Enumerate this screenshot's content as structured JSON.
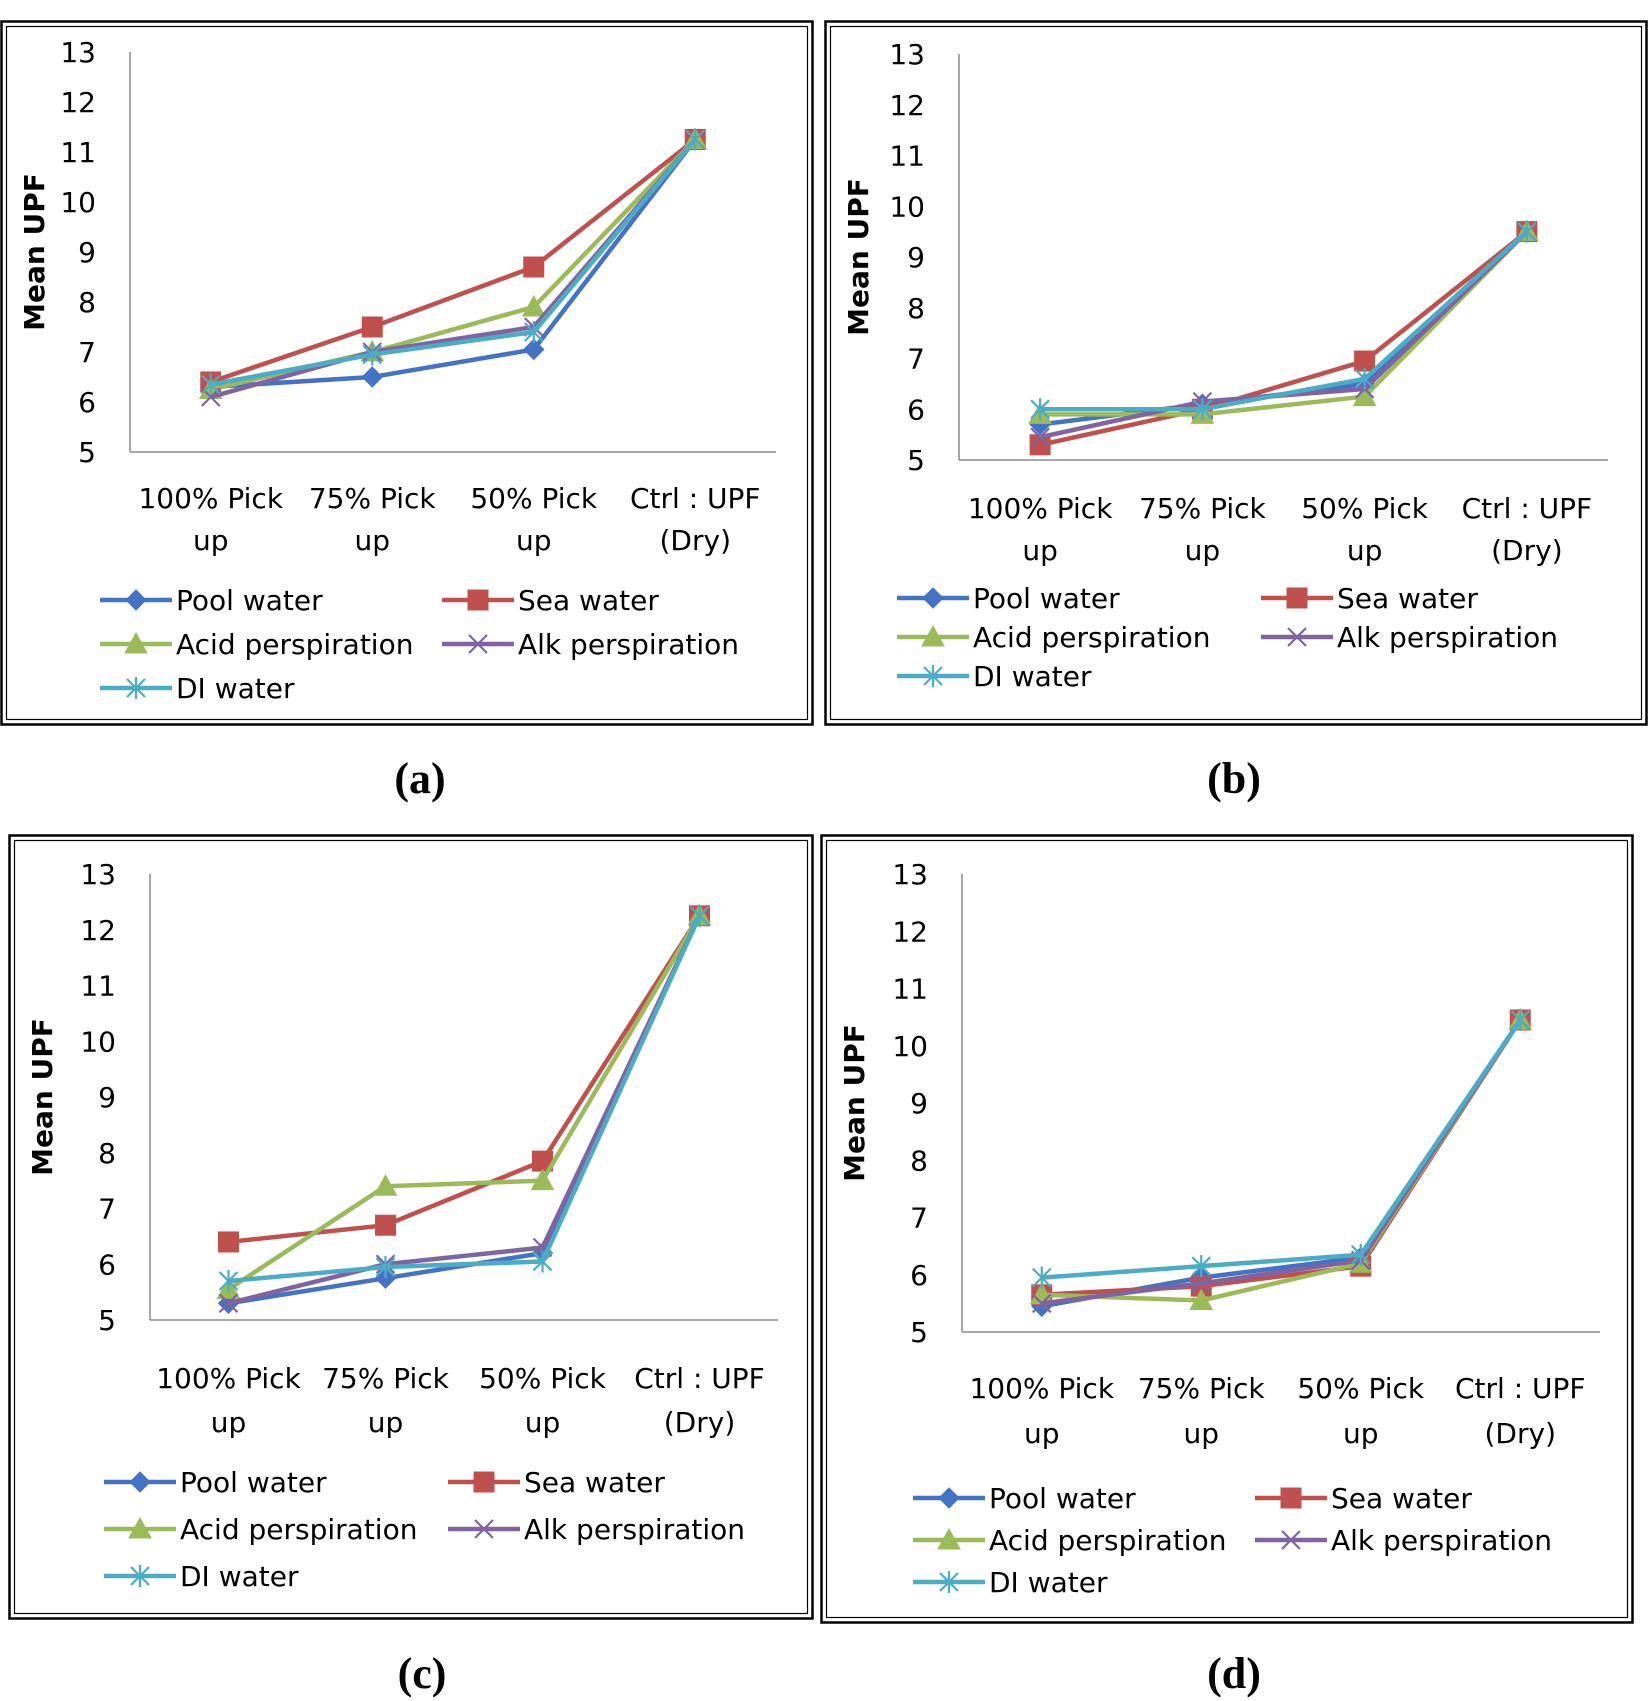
{
  "styles": {
    "Pool water": {
      "color": "#4472C4",
      "marker": "diamond"
    },
    "Sea water": {
      "color": "#C0504D",
      "marker": "square"
    },
    "Acid perspiration": {
      "color": "#9BBB59",
      "marker": "triangle"
    },
    "Alk perspiration": {
      "color": "#8064A2",
      "marker": "x"
    },
    "DI water": {
      "color": "#4BACC6",
      "marker": "star"
    }
  },
  "chart_data": [
    {
      "type": "line",
      "caption": "(a)",
      "ylabel": "Mean UPF",
      "ylim": [
        5,
        13
      ],
      "yticks": [
        "13",
        "12",
        "11",
        "10",
        "9",
        "8",
        "7",
        "6",
        "5"
      ],
      "categories": [
        [
          "100% Pick",
          "up"
        ],
        [
          "75% Pick",
          "up"
        ],
        [
          "50% Pick",
          "up"
        ],
        [
          "Ctrl : UPF",
          "(Dry)"
        ]
      ],
      "series": [
        {
          "name": "Pool water",
          "values": [
            6.3,
            6.5,
            7.05,
            11.25
          ]
        },
        {
          "name": "Sea water",
          "values": [
            6.4,
            7.5,
            8.7,
            11.25
          ]
        },
        {
          "name": "Acid perspiration",
          "values": [
            6.25,
            7.0,
            7.9,
            11.25
          ]
        },
        {
          "name": "Alk perspiration",
          "values": [
            6.1,
            7.0,
            7.5,
            11.25
          ]
        },
        {
          "name": "DI water",
          "values": [
            6.35,
            6.95,
            7.4,
            11.25
          ]
        }
      ]
    },
    {
      "type": "line",
      "caption": "(b)",
      "ylabel": "Mean UPF",
      "ylim": [
        5,
        13
      ],
      "yticks": [
        "13",
        "12",
        "11",
        "10",
        "9",
        "8",
        "7",
        "6",
        "5"
      ],
      "categories": [
        [
          "100% Pick",
          "up"
        ],
        [
          "75% Pick",
          "up"
        ],
        [
          "50% Pick",
          "up"
        ],
        [
          "Ctrl : UPF",
          "(Dry)"
        ]
      ],
      "series": [
        {
          "name": "Pool water",
          "values": [
            5.7,
            6.1,
            6.5,
            9.5
          ]
        },
        {
          "name": "Sea water",
          "values": [
            5.3,
            6.0,
            6.95,
            9.5
          ]
        },
        {
          "name": "Acid perspiration",
          "values": [
            5.9,
            5.9,
            6.25,
            9.5
          ]
        },
        {
          "name": "Alk perspiration",
          "values": [
            5.45,
            6.15,
            6.4,
            9.5
          ]
        },
        {
          "name": "DI water",
          "values": [
            6.0,
            6.0,
            6.6,
            9.5
          ]
        }
      ]
    },
    {
      "type": "line",
      "caption": "(c)",
      "ylabel": "Mean UPF",
      "ylim": [
        5,
        13
      ],
      "yticks": [
        "13",
        "12",
        "11",
        "10",
        "9",
        "8",
        "7",
        "6",
        "5"
      ],
      "categories": [
        [
          "100% Pick",
          "up"
        ],
        [
          "75% Pick",
          "up"
        ],
        [
          "50% Pick",
          "up"
        ],
        [
          "Ctrl : UPF",
          "(Dry)"
        ]
      ],
      "series": [
        {
          "name": "Pool water",
          "values": [
            5.3,
            5.75,
            6.2,
            12.25
          ]
        },
        {
          "name": "Sea water",
          "values": [
            6.4,
            6.7,
            7.85,
            12.25
          ]
        },
        {
          "name": "Acid perspiration",
          "values": [
            5.55,
            7.4,
            7.5,
            12.25
          ]
        },
        {
          "name": "Alk perspiration",
          "values": [
            5.3,
            6.0,
            6.3,
            12.25
          ]
        },
        {
          "name": "DI water",
          "values": [
            5.7,
            5.95,
            6.05,
            12.25
          ]
        }
      ]
    },
    {
      "type": "line",
      "caption": "(d)",
      "ylabel": "Mean UPF",
      "ylim": [
        5,
        13
      ],
      "yticks": [
        "13",
        "12",
        "11",
        "10",
        "9",
        "8",
        "7",
        "6",
        "5"
      ],
      "categories": [
        [
          "100% Pick",
          "up"
        ],
        [
          "75% Pick",
          "up"
        ],
        [
          "50% Pick",
          "up"
        ],
        [
          "Ctrl : UPF",
          "(Dry)"
        ]
      ],
      "series": [
        {
          "name": "Pool water",
          "values": [
            5.45,
            5.95,
            6.3,
            10.45
          ]
        },
        {
          "name": "Sea water",
          "values": [
            5.65,
            5.8,
            6.15,
            10.45
          ]
        },
        {
          "name": "Acid perspiration",
          "values": [
            5.65,
            5.55,
            6.2,
            10.45
          ]
        },
        {
          "name": "Alk perspiration",
          "values": [
            5.5,
            5.85,
            6.25,
            10.45
          ]
        },
        {
          "name": "DI water",
          "values": [
            5.95,
            6.15,
            6.35,
            10.45
          ]
        }
      ]
    }
  ]
}
